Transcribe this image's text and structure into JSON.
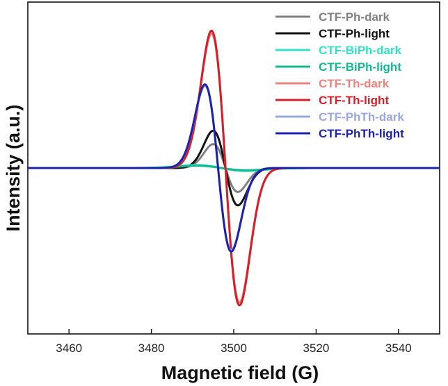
{
  "chart_data": {
    "type": "line",
    "title": "",
    "xlabel": "Magnetic field (G)",
    "ylabel": "Intensity (a.u.)",
    "xlim": [
      3450,
      3550
    ],
    "ylim": [
      -1.0,
      1.0
    ],
    "xticks": [
      3460,
      3480,
      3500,
      3520,
      3540
    ],
    "yticks_shown": false,
    "grid": false,
    "legend_position": "top-right",
    "series": [
      {
        "name": "CTF-Ph-dark",
        "color": "#808080",
        "center": 3498.0,
        "amplitude": 0.16,
        "width": 3.0
      },
      {
        "name": "CTF-Ph-light",
        "color": "#111111",
        "center": 3498.0,
        "amplitude": 0.25,
        "width": 3.0
      },
      {
        "name": "CTF-BiPh-dark",
        "color": "#35e0c4",
        "center": 3497.0,
        "amplitude": 0.02,
        "width": 6.0
      },
      {
        "name": "CTF-BiPh-light",
        "color": "#17b890",
        "center": 3497.0,
        "amplitude": 0.015,
        "width": 6.0
      },
      {
        "name": "CTF-Th-dark",
        "color": "#e8857e",
        "center": 3498.0,
        "amplitude": 0.9,
        "width": 3.4
      },
      {
        "name": "CTF-Th-light",
        "color": "#d4202a",
        "center": 3498.0,
        "amplitude": 0.92,
        "width": 3.4
      },
      {
        "name": "CTF-PhTh-dark",
        "color": "#9aa7df",
        "center": 3496.2,
        "amplitude": 0.55,
        "width": 3.2
      },
      {
        "name": "CTF-PhTh-light",
        "color": "#1c23a8",
        "center": 3496.2,
        "amplitude": 0.56,
        "width": 3.2
      }
    ]
  }
}
